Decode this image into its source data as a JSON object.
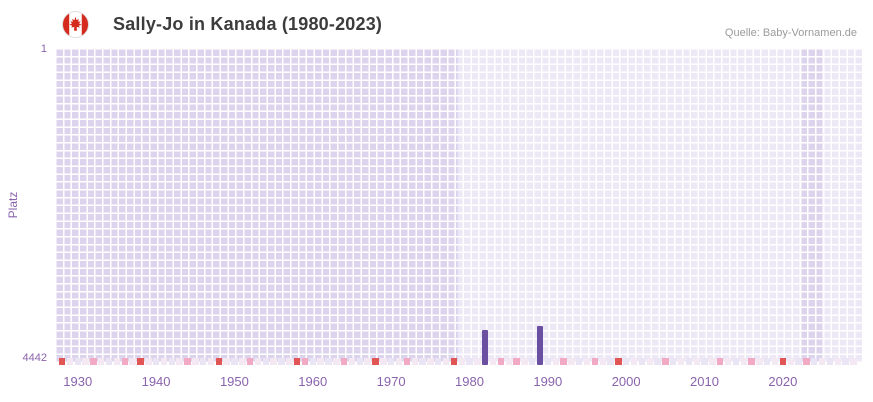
{
  "header": {
    "title": "Sally-Jo in Kanada (1980-2023)",
    "source": "Quelle: Baby-Vornamen.de",
    "flag_icon": "canada-flag-icon"
  },
  "colors": {
    "plot_bg": "#ece8f5",
    "region_shade": "#dbd4ec",
    "grid_line": "#ffffff",
    "bar": "#6b4fa1",
    "axis_text": "#8a63ad",
    "title_text": "#3c3c3c",
    "source_text": "#9b9b9b",
    "strip_red": "#e25555",
    "strip_pink": "#f2a9c4",
    "strip_pale1": "#f4e8f2",
    "strip_pale2": "#eae5f4",
    "flag_red": "#d52b1e"
  },
  "chart_data": {
    "type": "bar",
    "title": "Sally-Jo in Kanada (1980-2023)",
    "ylabel": "Platz",
    "xlabel": "",
    "y_axis": {
      "min": 1,
      "max": 4442,
      "min_label": "1",
      "max_label": "4442",
      "inverted": true
    },
    "x_ticks": [
      "1930",
      "1940",
      "1950",
      "1960",
      "1970",
      "1980",
      "1990",
      "2000",
      "2010",
      "2020"
    ],
    "x_domain": [
      1927.6,
      2030.6
    ],
    "grid": true,
    "legend": "none",
    "series": [
      {
        "name": "Platz",
        "points": [
          {
            "x": 1982,
            "y": 3990
          },
          {
            "x": 1989,
            "y": 3930
          }
        ]
      }
    ],
    "regions": [
      {
        "from": 1927.6,
        "to": 1979,
        "shade": "dark"
      },
      {
        "from": 2023,
        "to": 2025.5,
        "shade": "dark"
      }
    ],
    "strip": {
      "start": 1928,
      "end": 2029,
      "red_years": [
        1928,
        1938,
        1948,
        1958,
        1968,
        1978,
        1999,
        2020
      ],
      "pink_years": [
        1932,
        1936,
        1944,
        1952,
        1959,
        1964,
        1972,
        1984,
        1986,
        1992,
        1996,
        2005,
        2012,
        2016,
        2023
      ]
    }
  }
}
